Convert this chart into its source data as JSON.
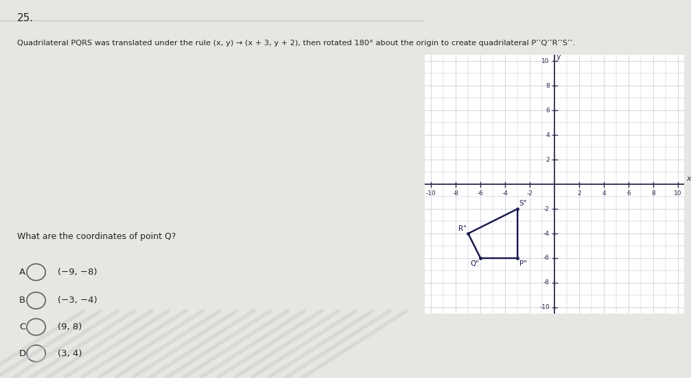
{
  "title_number": "25.",
  "problem_text": "Quadrilateral PQRS was translated under the rule (x, y) → (x + 3, y + 2), then rotated 180° about the origin to create quadrilateral P’’Q’’R’’S’’.",
  "question_text": "What are the coordinates of point Q?",
  "choices": [
    {
      "label": "A",
      "text": "(−9, −8)"
    },
    {
      "label": "B",
      "text": "(−3, −4)"
    },
    {
      "label": "C",
      "text": "(9, 8)"
    },
    {
      "label": "D",
      "text": "(3, 4)"
    }
  ],
  "grid_xlim": [
    -10.5,
    10.5
  ],
  "grid_ylim": [
    -10.5,
    10.5
  ],
  "grid_ticks_even": [
    -10,
    -8,
    -6,
    -4,
    -2,
    2,
    4,
    6,
    8,
    10
  ],
  "Ppp": [
    -3,
    -6
  ],
  "Qpp": [
    -6,
    -6
  ],
  "Rpp": [
    -7,
    -4
  ],
  "Spp": [
    -3,
    -2
  ],
  "quad_color": "#1a1a4e",
  "background_color": "#e8e6e3",
  "graph_bg": "#ffffff",
  "grid_line_color": "#b0b8c8",
  "axis_color": "#2a2a4a",
  "tick_label_color": "#2a2a4a",
  "title_color": "#222222",
  "text_color": "#222222",
  "label_fontsize": 6.5,
  "choice_fontsize": 10
}
